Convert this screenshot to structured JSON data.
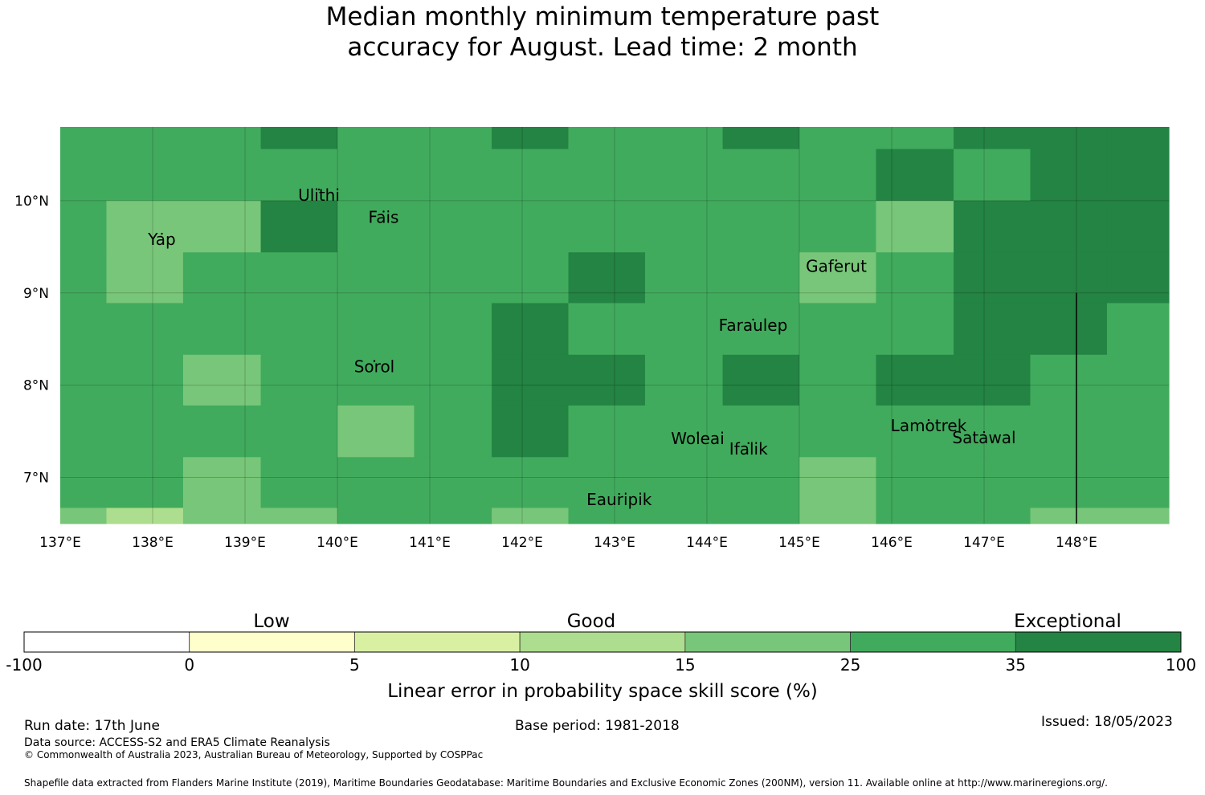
{
  "title": {
    "line1": "Median monthly minimum temperature past",
    "line2": "accuracy for August. Lead time: 2 month"
  },
  "map": {
    "lon_range": [
      137,
      149
    ],
    "lat_range": [
      6.5,
      10.8
    ],
    "lon_ticks": [
      "137°E",
      "138°E",
      "139°E",
      "140°E",
      "141°E",
      "142°E",
      "143°E",
      "144°E",
      "145°E",
      "146°E",
      "147°E",
      "148°E"
    ],
    "lat_ticks": [
      "7°N",
      "8°N",
      "9°N",
      "10°N"
    ],
    "grid_lon_edges": [
      137.0,
      137.5,
      138.33,
      139.17,
      140.0,
      140.83,
      141.67,
      142.5,
      143.33,
      144.17,
      145.0,
      145.83,
      146.67,
      147.5,
      148.33,
      149.0
    ],
    "grid_lat_edges": [
      10.8,
      10.56,
      10.0,
      9.44,
      8.89,
      8.33,
      7.78,
      7.22,
      6.67,
      6.5
    ],
    "skill_grid": [
      [
        3,
        3,
        3,
        4,
        3,
        3,
        4,
        3,
        3,
        4,
        3,
        3,
        4,
        4,
        4
      ],
      [
        3,
        3,
        3,
        3,
        3,
        3,
        3,
        3,
        3,
        3,
        3,
        4,
        3,
        4,
        4
      ],
      [
        3,
        2,
        2,
        4,
        3,
        3,
        3,
        3,
        3,
        3,
        3,
        2,
        4,
        4,
        4
      ],
      [
        3,
        2,
        3,
        3,
        3,
        3,
        3,
        4,
        3,
        3,
        2,
        3,
        4,
        4,
        4
      ],
      [
        3,
        3,
        3,
        3,
        3,
        3,
        4,
        3,
        3,
        3,
        3,
        3,
        4,
        4,
        3
      ],
      [
        3,
        3,
        2,
        3,
        3,
        3,
        4,
        4,
        3,
        4,
        3,
        4,
        4,
        3,
        3
      ],
      [
        3,
        3,
        3,
        3,
        2,
        3,
        4,
        3,
        3,
        3,
        3,
        3,
        3,
        3,
        3
      ],
      [
        3,
        3,
        2,
        3,
        3,
        3,
        3,
        3,
        3,
        3,
        2,
        3,
        3,
        3,
        3
      ],
      [
        2,
        1,
        2,
        2,
        3,
        3,
        2,
        3,
        3,
        3,
        2,
        3,
        3,
        2,
        2
      ]
    ],
    "islands": [
      {
        "name": "Ulithi",
        "lon": 139.8,
        "lat": 10.0
      },
      {
        "name": "Fais",
        "lon": 140.5,
        "lat": 9.76
      },
      {
        "name": "Yap",
        "lon": 138.1,
        "lat": 9.52
      },
      {
        "name": "Gaferut",
        "lon": 145.4,
        "lat": 9.23
      },
      {
        "name": "Faraulep",
        "lon": 144.5,
        "lat": 8.59
      },
      {
        "name": "Sorol",
        "lon": 140.4,
        "lat": 8.14
      },
      {
        "name": "Woleai",
        "lon": 143.9,
        "lat": 7.36
      },
      {
        "name": "Ifalik",
        "lon": 144.45,
        "lat": 7.25
      },
      {
        "name": "Lamotrek",
        "lon": 146.4,
        "lat": 7.5
      },
      {
        "name": "Satawal",
        "lon": 147.0,
        "lat": 7.37
      },
      {
        "name": "Eauripik",
        "lon": 143.05,
        "lat": 6.7
      }
    ],
    "boundary_line": {
      "lon": 148.0,
      "lat_from": 9.0,
      "lat_to": 6.5
    }
  },
  "legend": {
    "categories": [
      "Low",
      "Good",
      "Exceptional"
    ],
    "bounds": [
      "-100",
      "0",
      "5",
      "10",
      "15",
      "25",
      "35",
      "100"
    ],
    "colors": [
      "#ffffff",
      "#ffffcc",
      "#d9f0a3",
      "#addd8e",
      "#78c679",
      "#41ab5d",
      "#238443"
    ],
    "label": "Linear error in probability space skill score (%)"
  },
  "footer": {
    "run_date": "Run date: 17th June",
    "base_period": "Base period: 1981-2018",
    "issued": "Issued: 18/05/2023",
    "data_source": "Data source: ACCESS-S2 and ERA5 Climate Reanalysis",
    "copyright": "© Commonwealth of Australia 2023, Australian Bureau of Meteorology, Supported by COSPPac",
    "shapefile": "Shapefile data extracted from Flanders Marine Institute (2019), Maritime Boundaries Geodatabase: Maritime Boundaries and Exclusive Economic Zones (200NM), version 11. Available online at http://www.marineregions.org/."
  }
}
